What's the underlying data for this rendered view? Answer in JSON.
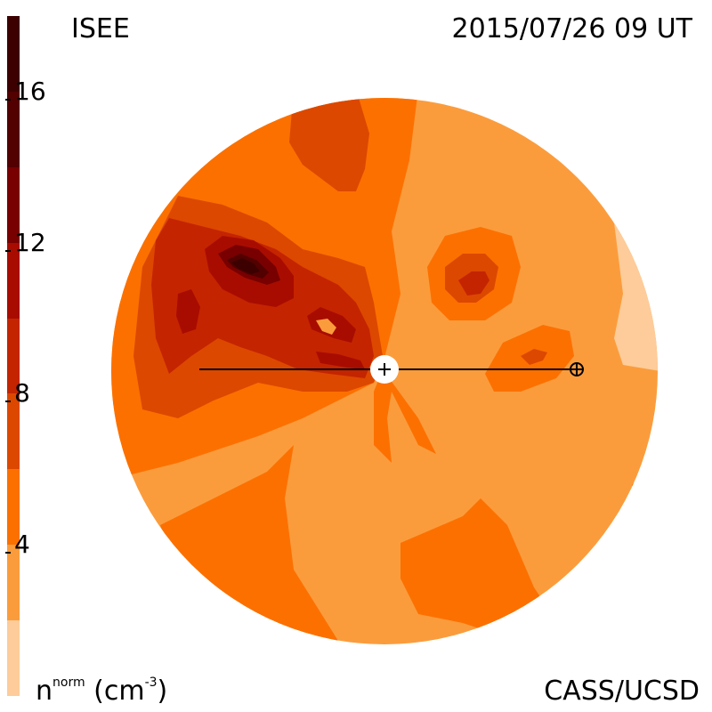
{
  "header": {
    "observatory": "ISEE",
    "datetime": "2015/07/26 09 UT"
  },
  "footer": {
    "credit": "CASS/UCSD",
    "quantity": "n",
    "quantity_superscript": "norm",
    "unit_open": "(cm",
    "unit_superscript": "-3",
    "unit_close": ")"
  },
  "colorbar": {
    "levels": [
      {
        "min": 0,
        "max": 2,
        "color": "#fdcc9a"
      },
      {
        "min": 2,
        "max": 4,
        "color": "#fb9c3c"
      },
      {
        "min": 4,
        "max": 6,
        "color": "#fc7000"
      },
      {
        "min": 6,
        "max": 8,
        "color": "#dc4800"
      },
      {
        "min": 8,
        "max": 10,
        "color": "#c42400"
      },
      {
        "min": 10,
        "max": 12,
        "color": "#a80c00"
      },
      {
        "min": 12,
        "max": 14,
        "color": "#780000"
      },
      {
        "min": 14,
        "max": 16,
        "color": "#520000"
      },
      {
        "min": 16,
        "max": 18,
        "color": "#3c0000"
      }
    ],
    "tick_labels": [
      "4",
      "8",
      "12",
      "16"
    ],
    "tick_values": [
      4,
      8,
      12,
      16
    ]
  },
  "colors": {
    "level_1": "#fdcc9a",
    "level_2": "#fb9c3c",
    "level_3": "#fc7000",
    "level_4": "#dc4800",
    "level_5": "#c42400",
    "level_6": "#a80c00",
    "level_7": "#780000",
    "level_8": "#520000",
    "level_9": "#3c0000"
  }
}
